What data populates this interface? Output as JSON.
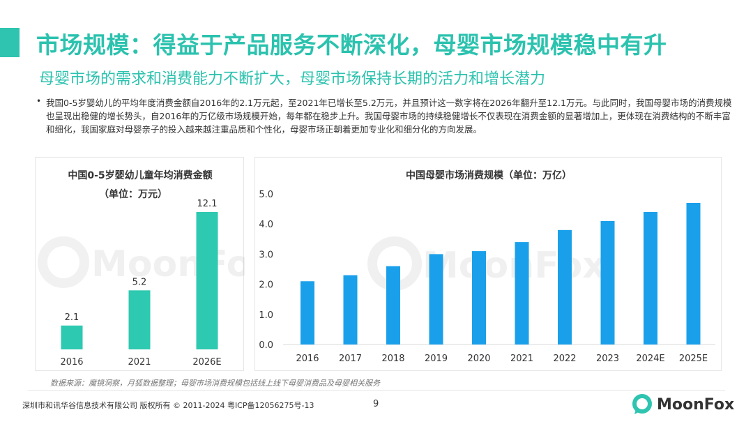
{
  "header": {
    "title": "市场规模：得益于产品服务不断深化，母婴市场规模稳中有升",
    "subtitle": "母婴市场的需求和消费能力不断扩大，母婴市场保持长期的活力和增长潜力"
  },
  "body": {
    "bullet": "我国0-5岁婴幼儿的平均年度消费金额自2016年的2.1万元起，至2021年已增长至5.2万元，并且预计这一数字将在2026年翻升至12.1万元。与此同时，我国母婴市场的消费规模也呈现出稳健的增长势头，自2016年的万亿级市场规模开始，每年都在稳步上升。我国母婴市场的持续稳健增长不仅表现在消费金额的显著增加上，更体现在消费结构的不断丰富和细化，我国家庭对母婴亲子的投入越来越注重品质和个性化，母婴市场正朝着更加专业化和细分化的方向发展。"
  },
  "chart_data": [
    {
      "type": "bar",
      "title": "中国0-5岁婴幼儿童年均消费金额",
      "subtitle": "（单位：万元）",
      "categories": [
        "2016",
        "2021",
        "2026E"
      ],
      "values": [
        2.1,
        5.2,
        12.1
      ],
      "data_labels": [
        "2.1",
        "5.2",
        "12.1"
      ],
      "color": "#2dc9b0",
      "ylim": [
        0,
        13
      ],
      "grid": false,
      "legend": "none"
    },
    {
      "type": "bar",
      "title": "中国母婴市场消费规模（单位：万亿）",
      "categories": [
        "2016",
        "2017",
        "2018",
        "2019",
        "2020",
        "2021",
        "2022",
        "2023",
        "2024E",
        "2025E"
      ],
      "values": [
        2.1,
        2.3,
        2.6,
        3.0,
        3.1,
        3.4,
        3.8,
        4.1,
        4.4,
        4.7
      ],
      "yticks": [
        "0.0",
        "1.0",
        "2.0",
        "3.0",
        "4.0",
        "5.0"
      ],
      "ylim": [
        0,
        5
      ],
      "color": "#1aa0ea",
      "grid": false,
      "legend": "none"
    }
  ],
  "watermark": "MoonFox",
  "footer": {
    "source": "数据来源：魔镜洞察，月狐数据整理；母婴市场消费规模包括线上线下母婴消费品及母婴相关服务",
    "copyright": "深圳市和讯华谷信息技术有限公司 版权所有 © 2011-2024 粤ICP备12056275号-13",
    "page": "9",
    "logo_text": "MoonFox"
  },
  "colors": {
    "accent": "#2bc2ae",
    "left_bar": "#2dc9b0",
    "right_bar": "#1aa0ea"
  }
}
